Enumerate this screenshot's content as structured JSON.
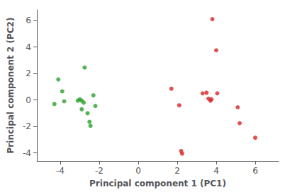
{
  "chart_data": {
    "type": "scatter",
    "xlabel": "Principal component 1 (PC1)",
    "ylabel": "Principal component 2 (PC2)",
    "xlim": [
      -5.2,
      7.2
    ],
    "ylim": [
      -4.6,
      6.8
    ],
    "xticks": [
      -4,
      -2,
      0,
      2,
      4,
      6
    ],
    "yticks": [
      -4,
      -2,
      0,
      2,
      4,
      6
    ],
    "grid": false,
    "series": [
      {
        "color": "#2ca02c",
        "x": [
          -4.3,
          -4.1,
          -3.9,
          -3.8,
          -3.1,
          -3.0,
          -2.9,
          -2.9,
          -2.8,
          -2.75,
          -2.6,
          -2.5,
          -2.45,
          -2.3,
          -2.2
        ],
        "values": [
          -0.3,
          1.55,
          0.65,
          -0.1,
          -0.05,
          0.05,
          -0.05,
          -0.7,
          -0.2,
          2.45,
          -1.0,
          -1.65,
          -1.95,
          0.35,
          -0.45
        ]
      },
      {
        "color": "#d62728",
        "x": [
          1.7,
          2.1,
          2.2,
          2.25,
          3.3,
          3.5,
          3.6,
          3.7,
          3.75,
          3.8,
          4.0,
          4.05,
          5.1,
          5.2,
          6.0
        ],
        "values": [
          0.85,
          -0.4,
          -3.85,
          -4.05,
          0.5,
          0.55,
          0.1,
          -0.05,
          0.05,
          6.1,
          3.75,
          0.5,
          -0.55,
          -1.75,
          -2.85
        ]
      }
    ]
  }
}
